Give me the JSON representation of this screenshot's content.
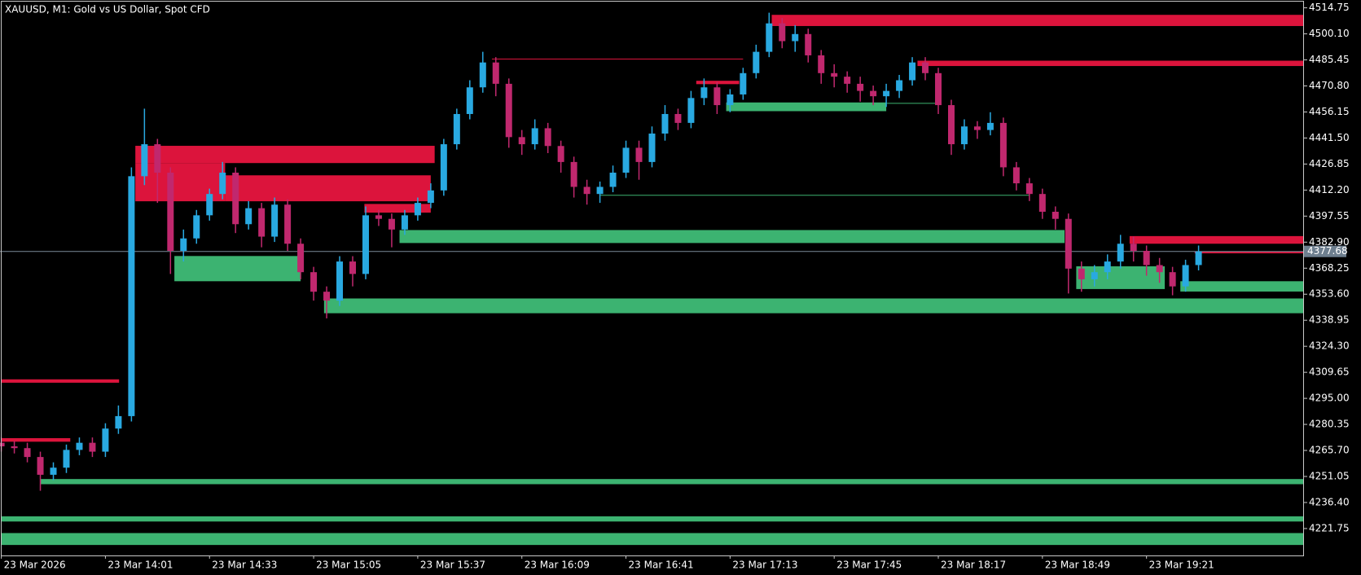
{
  "chart_data": {
    "type": "candlestick",
    "title": "XAUUSD, M1:  Gold vs US Dollar, Spot CFD",
    "categories": [
      "23 Mar 2026",
      null,
      null,
      null,
      null,
      null,
      null,
      null,
      "23 Mar 14:01",
      null,
      null,
      null,
      null,
      null,
      null,
      null,
      "23 Mar 14:33",
      null,
      null,
      null,
      null,
      null,
      null,
      null,
      "23 Mar 15:05",
      null,
      null,
      null,
      null,
      null,
      null,
      null,
      "23 Mar 15:37",
      null,
      null,
      null,
      null,
      null,
      null,
      null,
      "23 Mar 16:09",
      null,
      null,
      null,
      null,
      null,
      null,
      null,
      "23 Mar 16:41",
      null,
      null,
      null,
      null,
      null,
      null,
      null,
      "23 Mar 17:13",
      null,
      null,
      null,
      null,
      null,
      null,
      null,
      "23 Mar 17:45",
      null,
      null,
      null,
      null,
      null,
      null,
      null,
      "23 Mar 18:17",
      null,
      null,
      null,
      null,
      null,
      null,
      null,
      "23 Mar 18:49",
      null,
      null,
      null,
      null,
      null,
      null,
      null,
      "23 Mar 19:21",
      null,
      null,
      null,
      null
    ],
    "open": [
      4270,
      4268,
      4267,
      4262,
      4252,
      4256,
      4266,
      4270,
      4265,
      4278,
      4285,
      4420,
      4438,
      4422,
      4378,
      4385,
      4398,
      4410,
      4422,
      4393,
      4402,
      4386,
      4404,
      4382,
      4366,
      4355,
      4350,
      4372,
      4365,
      4398,
      4396,
      4390,
      4398,
      4405,
      4412,
      4438,
      4455,
      4470,
      4484,
      4472,
      4442,
      4438,
      4447,
      4437,
      4428,
      4414,
      4410,
      4414,
      4422,
      4436,
      4428,
      4444,
      4455,
      4450,
      4464,
      4470,
      4460,
      4466,
      4478,
      4490,
      4506,
      4496,
      4500,
      4488,
      4478,
      4476,
      4472,
      4468,
      4465,
      4468,
      4474,
      4484,
      4478,
      4460,
      4438,
      4448,
      4446,
      4450,
      4425,
      4416,
      4410,
      4400,
      4396,
      4368,
      4362,
      4366,
      4372,
      4382,
      4378,
      4370,
      4366,
      4358,
      4370
    ],
    "high": [
      4273,
      4271,
      4270,
      4265,
      4259,
      4269,
      4273,
      4273,
      4281,
      4291,
      4425,
      4458,
      4441,
      4425,
      4390,
      4401,
      4413,
      4428,
      4425,
      4406,
      4405,
      4408,
      4407,
      4385,
      4369,
      4358,
      4375,
      4375,
      4403,
      4401,
      4399,
      4401,
      4408,
      4416,
      4441,
      4458,
      4474,
      4490,
      4487,
      4475,
      4446,
      4452,
      4450,
      4440,
      4431,
      4418,
      4417,
      4426,
      4440,
      4440,
      4448,
      4460,
      4458,
      4468,
      4475,
      4473,
      4469,
      4481,
      4494,
      4512,
      4509,
      4505,
      4503,
      4491,
      4483,
      4479,
      4476,
      4471,
      4472,
      4477,
      4487,
      4487,
      4481,
      4463,
      4452,
      4451,
      4456,
      4453,
      4428,
      4419,
      4413,
      4403,
      4399,
      4372,
      4370,
      4376,
      4387,
      4386,
      4381,
      4374,
      4369,
      4373,
      4381
    ],
    "low": [
      4265,
      4264,
      4259,
      4243,
      4249,
      4253,
      4263,
      4262,
      4262,
      4275,
      4282,
      4415,
      4405,
      4365,
      4372,
      4382,
      4395,
      4407,
      4388,
      4390,
      4380,
      4383,
      4378,
      4362,
      4350,
      4340,
      4347,
      4358,
      4362,
      4392,
      4380,
      4387,
      4395,
      4402,
      4409,
      4435,
      4452,
      4467,
      4465,
      4436,
      4432,
      4435,
      4433,
      4422,
      4408,
      4404,
      4405,
      4411,
      4419,
      4418,
      4425,
      4440,
      4446,
      4447,
      4460,
      4455,
      4456,
      4463,
      4475,
      4487,
      4492,
      4490,
      4484,
      4472,
      4470,
      4467,
      4462,
      4460,
      4459,
      4464,
      4471,
      4474,
      4455,
      4432,
      4435,
      4441,
      4443,
      4420,
      4412,
      4406,
      4396,
      4390,
      4354,
      4355,
      4358,
      4362,
      4368,
      4372,
      4364,
      4360,
      4353,
      4355,
      4367
    ],
    "close": [
      4268,
      4267,
      4262,
      4252,
      4256,
      4266,
      4270,
      4265,
      4278,
      4285,
      4420,
      4438,
      4422,
      4378,
      4385,
      4398,
      4410,
      4422,
      4393,
      4402,
      4386,
      4404,
      4382,
      4366,
      4355,
      4350,
      4372,
      4365,
      4398,
      4396,
      4390,
      4398,
      4405,
      4412,
      4438,
      4455,
      4470,
      4484,
      4472,
      4442,
      4438,
      4447,
      4437,
      4428,
      4414,
      4410,
      4414,
      4422,
      4436,
      4428,
      4444,
      4455,
      4450,
      4464,
      4470,
      4460,
      4466,
      4478,
      4490,
      4506,
      4496,
      4500,
      4488,
      4478,
      4476,
      4472,
      4468,
      4465,
      4468,
      4474,
      4484,
      4478,
      4460,
      4438,
      4448,
      4446,
      4450,
      4425,
      4416,
      4410,
      4400,
      4396,
      4368,
      4362,
      4366,
      4372,
      4382,
      4378,
      4370,
      4366,
      4358,
      4370,
      4377.68
    ],
    "up_color": "#29a9e1",
    "down_color": "#c0286e",
    "xlim": [
      -0.1,
      100.1
    ],
    "ylim": [
      4206.6,
      4519.15
    ],
    "yticks": [
      4514.75,
      {
        "value": 4500.1,
        "label": "4500.10"
      },
      4485.45,
      {
        "value": 4470.8,
        "label": "4470.80"
      },
      4456.15,
      {
        "value": 4441.5,
        "label": "4441.50"
      },
      4426.85,
      {
        "value": 4412.2,
        "label": "4412.20"
      },
      4397.55,
      {
        "value": 4382.9,
        "label": "4382.90"
      },
      4368.25,
      {
        "value": 4353.6,
        "label": "4353.60"
      },
      4338.95,
      {
        "value": 4324.3,
        "label": "4324.30"
      },
      4309.65,
      {
        "value": 4295,
        "label": "4295.00"
      },
      4280.35,
      {
        "value": 4265.7,
        "label": "4265.70"
      },
      4251.05,
      {
        "value": 4236.4,
        "label": "4236.40"
      },
      4221.75
    ],
    "last_price": 4377.68,
    "zones": [
      {
        "color": "#dc143c",
        "x0": 0,
        "x1": 9.05,
        "top": 4305.7,
        "bottom": 4303.8
      },
      {
        "color": "#dc143c",
        "x0": 0,
        "x1": 5.3,
        "top": 4272.6,
        "bottom": 4270.6
      },
      {
        "color": "#dc143c",
        "x0": 10.3,
        "x1": 33.3,
        "top": 4437.1,
        "bottom": 4427.4
      },
      {
        "color": "#dc143c",
        "x0": 10.3,
        "x1": 17.2,
        "top": 4427.4,
        "bottom": 4405.9
      },
      {
        "color": "#dc143c",
        "x0": 17.2,
        "x1": 33.0,
        "top": 4420.5,
        "bottom": 4405.9
      },
      {
        "color": "#dc143c",
        "x0": 27.9,
        "x1": 33.0,
        "top": 4404.4,
        "bottom": 4399.5
      },
      {
        "color": "#dc143c",
        "x0": 53.4,
        "x1": 56.7,
        "top": 4473.7,
        "bottom": 4471.8
      },
      {
        "color": "#dc143c",
        "x0": 59.2,
        "x1": 100.2,
        "top": 4510.8,
        "bottom": 4504.5
      },
      {
        "color": "#dc143c",
        "x0": 70.4,
        "x1": 100.2,
        "top": 4485.0,
        "bottom": 4482.0
      },
      {
        "color": "#dc143c",
        "x0": 86.7,
        "x1": 100.2,
        "top": 4386.3,
        "bottom": 4382.0
      },
      {
        "color": "#dc143c",
        "x0": 91.7,
        "x1": 100.2,
        "top": 4377.6,
        "bottom": 4376.6
      },
      {
        "color": "#3cb371",
        "x0": 13.3,
        "x1": 23.0,
        "top": 4375.1,
        "bottom": 4360.9
      },
      {
        "color": "#3cb371",
        "x0": 30.6,
        "x1": 81.7,
        "top": 4389.7,
        "bottom": 4382.4
      },
      {
        "color": "#3cb371",
        "x0": 24.8,
        "x1": 100.2,
        "top": 4351.2,
        "bottom": 4342.9
      },
      {
        "color": "#3cb371",
        "x0": 55.7,
        "x1": 68.0,
        "top": 4461.5,
        "bottom": 4456.6
      },
      {
        "color": "#3cb371",
        "x0": 82.6,
        "x1": 89.4,
        "top": 4369.3,
        "bottom": 4356.5
      },
      {
        "color": "#3cb371",
        "x0": 90.6,
        "x1": 100.2,
        "top": 4360.9,
        "bottom": 4355.1
      },
      {
        "color": "#3cb371",
        "x0": 3.0,
        "x1": 100.2,
        "top": 4249.6,
        "bottom": 4246.7
      },
      {
        "color": "#3cb371",
        "x0": 0,
        "x1": 100.2,
        "top": 4228.6,
        "bottom": 4225.7
      },
      {
        "color": "#3cb371",
        "x0": 0,
        "x1": 100.2,
        "top": 4219.2,
        "bottom": 4212.5
      }
    ],
    "levels": [
      {
        "color": "#dc143c",
        "x0": 37.7,
        "x1": 57.0,
        "value": 4485.9
      },
      {
        "color": "#3cb371",
        "x0": 46.0,
        "x1": 79.0,
        "value": 4409.3
      },
      {
        "color": "#3cb371",
        "x0": 68.0,
        "x1": 72.0,
        "value": 4461.0
      }
    ]
  }
}
